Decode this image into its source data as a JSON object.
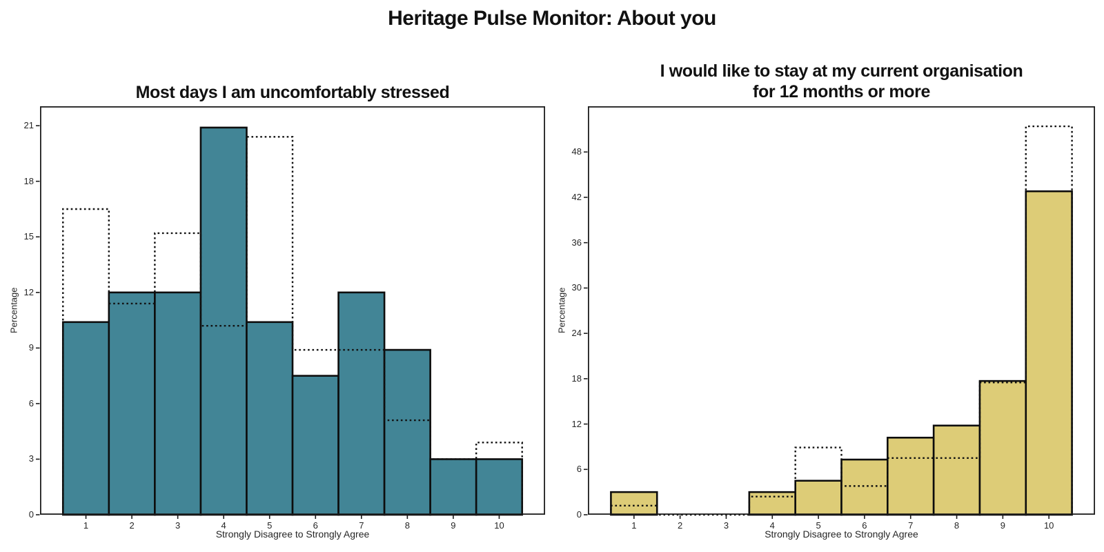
{
  "page": {
    "suptitle": "Heritage Pulse Monitor: About you"
  },
  "chart_data": [
    {
      "type": "bar",
      "subtype": "histogram-with-dotted-step-overlay",
      "title": "Most days I am uncomfortably stressed",
      "xlabel": "Strongly Disagree to Strongly Agree",
      "ylabel": "Percentage",
      "categories": [
        1,
        2,
        3,
        4,
        5,
        6,
        7,
        8,
        9,
        10
      ],
      "series": [
        {
          "name": "current-wave-filled",
          "style": "filled",
          "color": "#428596",
          "values": [
            10.4,
            12.0,
            12.0,
            20.9,
            10.4,
            7.5,
            12.0,
            8.9,
            3.0,
            3.0
          ]
        },
        {
          "name": "comparison-dotted-outline",
          "style": "dotted-step",
          "color": "#111111",
          "values": [
            16.5,
            11.4,
            15.2,
            10.2,
            20.4,
            8.9,
            8.9,
            5.1,
            3.0,
            3.9
          ]
        }
      ],
      "xlim": [
        0,
        11
      ],
      "ylim": [
        0,
        22.05
      ],
      "yticks": [
        0,
        3,
        6,
        9,
        12,
        15,
        18,
        21
      ],
      "xticks": [
        1,
        2,
        3,
        4,
        5,
        6,
        7,
        8,
        9,
        10
      ],
      "grid": false,
      "legend": null,
      "edge_color": "#0d0d0d",
      "axis_color": "#1c1c1c"
    },
    {
      "type": "bar",
      "subtype": "histogram-with-dotted-step-overlay",
      "title": "I would like to stay at my current organisation\nfor 12 months or more",
      "xlabel": "Strongly Disagree to Strongly Agree",
      "ylabel": "Percentage",
      "categories": [
        1,
        2,
        3,
        4,
        5,
        6,
        7,
        8,
        9,
        10
      ],
      "series": [
        {
          "name": "current-wave-filled",
          "style": "filled",
          "color": "#ddcc77",
          "values": [
            3.0,
            0,
            0,
            3.0,
            4.5,
            7.3,
            10.2,
            11.8,
            17.7,
            42.8
          ]
        },
        {
          "name": "comparison-dotted-outline",
          "style": "dotted-step",
          "color": "#111111",
          "values": [
            1.2,
            0,
            0,
            2.4,
            8.9,
            3.8,
            7.5,
            7.5,
            17.5,
            51.4
          ]
        }
      ],
      "xlim": [
        0,
        11
      ],
      "ylim": [
        0,
        54.05
      ],
      "yticks": [
        0,
        6,
        12,
        18,
        24,
        30,
        36,
        42,
        48
      ],
      "xticks": [
        1,
        2,
        3,
        4,
        5,
        6,
        7,
        8,
        9,
        10
      ],
      "grid": false,
      "legend": null,
      "edge_color": "#0d0d0d",
      "axis_color": "#1c1c1c"
    }
  ]
}
